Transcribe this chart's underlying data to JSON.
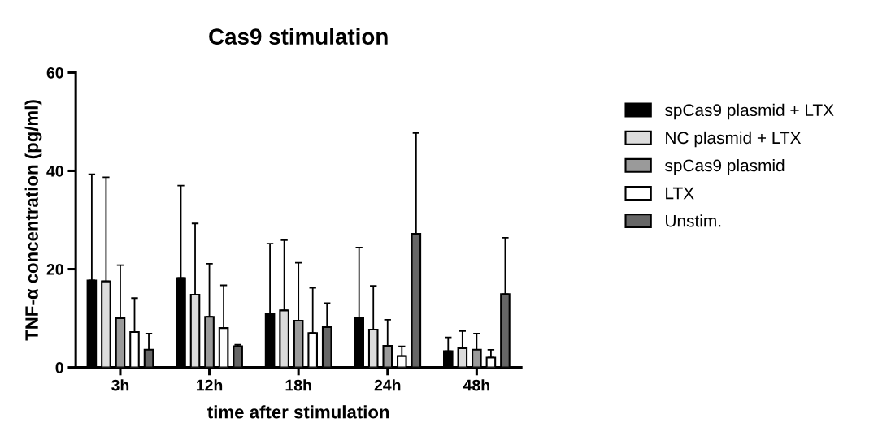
{
  "chart_data": {
    "type": "bar",
    "title": "Cas9 stimulation",
    "xlabel": "time after stimulation",
    "ylabel": "TNF-α concentration (pg/ml)",
    "categories": [
      "3h",
      "12h",
      "18h",
      "24h",
      "48h"
    ],
    "series": [
      {
        "name": "spCas9 plasmid + LTX",
        "color": "#000000",
        "values": [
          17.7,
          18.2,
          11.0,
          10.0,
          3.3
        ],
        "errors": [
          [
            17.7,
            39.3
          ],
          [
            18.2,
            37.0
          ],
          [
            11.0,
            25.2
          ],
          [
            10.0,
            24.4
          ],
          [
            3.3,
            6.1
          ]
        ]
      },
      {
        "name": "NC plasmid + LTX",
        "color": "#dcdcdc",
        "values": [
          17.5,
          14.8,
          11.6,
          7.7,
          3.9
        ],
        "errors": [
          [
            17.5,
            38.7
          ],
          [
            14.8,
            29.3
          ],
          [
            11.6,
            25.9
          ],
          [
            7.7,
            16.6
          ],
          [
            3.9,
            7.4
          ]
        ]
      },
      {
        "name": "spCas9 plasmid",
        "color": "#9a9a9a",
        "values": [
          10.0,
          10.3,
          9.5,
          4.4,
          3.6
        ],
        "errors": [
          [
            10.0,
            20.8
          ],
          [
            10.3,
            21.1
          ],
          [
            9.5,
            21.3
          ],
          [
            4.4,
            9.7
          ],
          [
            3.6,
            6.9
          ]
        ]
      },
      {
        "name": "LTX",
        "color": "#ffffff",
        "values": [
          7.2,
          8.0,
          7.0,
          2.3,
          2.0
        ],
        "errors": [
          [
            7.2,
            14.1
          ],
          [
            8.0,
            16.7
          ],
          [
            7.0,
            16.2
          ],
          [
            2.3,
            4.3
          ],
          [
            2.0,
            3.6
          ]
        ]
      },
      {
        "name": "Unstim.",
        "color": "#666666",
        "values": [
          3.6,
          4.3,
          8.2,
          27.2,
          14.9
        ],
        "errors": [
          [
            3.6,
            6.9
          ],
          [
            4.3,
            4.6
          ],
          [
            8.2,
            13.1
          ],
          [
            27.2,
            47.7
          ],
          [
            14.9,
            26.4
          ]
        ]
      }
    ],
    "ylim": [
      0,
      60
    ],
    "yticks": [
      0,
      20,
      40,
      60
    ],
    "grid": false,
    "legend": "right"
  }
}
